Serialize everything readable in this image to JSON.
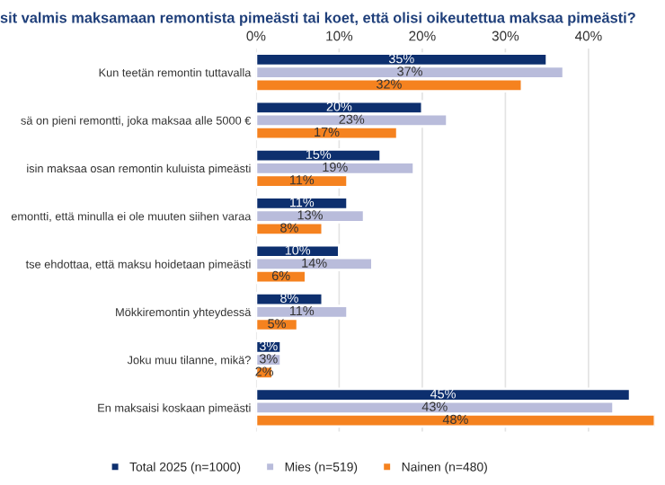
{
  "chart_data": {
    "type": "bar",
    "orientation": "horizontal",
    "title": "sit valmis maksamaan remontista pimeästi tai koet, että olisi oikeutettua maksaa pimeästi?",
    "categories": [
      "Kun teetän remontin tuttavalla",
      "sä on pieni remontti, joka maksaa alle 5000 €",
      "isin maksaa osan remontin kuluista pimeästi",
      "emontti, että minulla ei ole muuten siihen varaa",
      "tse ehdottaa, että maksu hoidetaan pimeästi",
      "Mökkiremontin yhteydessä",
      "Joku muu tilanne, mikä?",
      "En maksaisi koskaan pimeästi"
    ],
    "series": [
      {
        "name": "Total 2025 (n=1000)",
        "color": "#0d2f6e",
        "values": [
          35,
          20,
          15,
          11,
          10,
          8,
          3,
          45
        ],
        "value_labels": [
          "35%",
          "20%",
          "15%",
          "11%",
          "10%",
          "8%",
          "3%",
          "45%"
        ]
      },
      {
        "name": "Mies (n=519)",
        "color": "#b9bcdb",
        "values": [
          37,
          23,
          19,
          13,
          14,
          11,
          3,
          43
        ],
        "value_labels": [
          "37%",
          "23%",
          "19%",
          "13%",
          "14%",
          "11%",
          "3%",
          "43%"
        ]
      },
      {
        "name": "Nainen (n=480)",
        "color": "#f5821f",
        "values": [
          32,
          17,
          11,
          8,
          6,
          5,
          2,
          48
        ],
        "value_labels": [
          "32%",
          "17%",
          "11%",
          "8%",
          "6%",
          "5%",
          "2%",
          "48%"
        ]
      }
    ],
    "xlim": [
      0,
      48
    ],
    "xticks": [
      {
        "value": 0,
        "label": "0%"
      },
      {
        "value": 10,
        "label": "10%"
      },
      {
        "value": 20,
        "label": "20%"
      },
      {
        "value": 30,
        "label": "30%"
      },
      {
        "value": 40,
        "label": "40%"
      }
    ],
    "grid": "x",
    "legend": "bottom"
  }
}
